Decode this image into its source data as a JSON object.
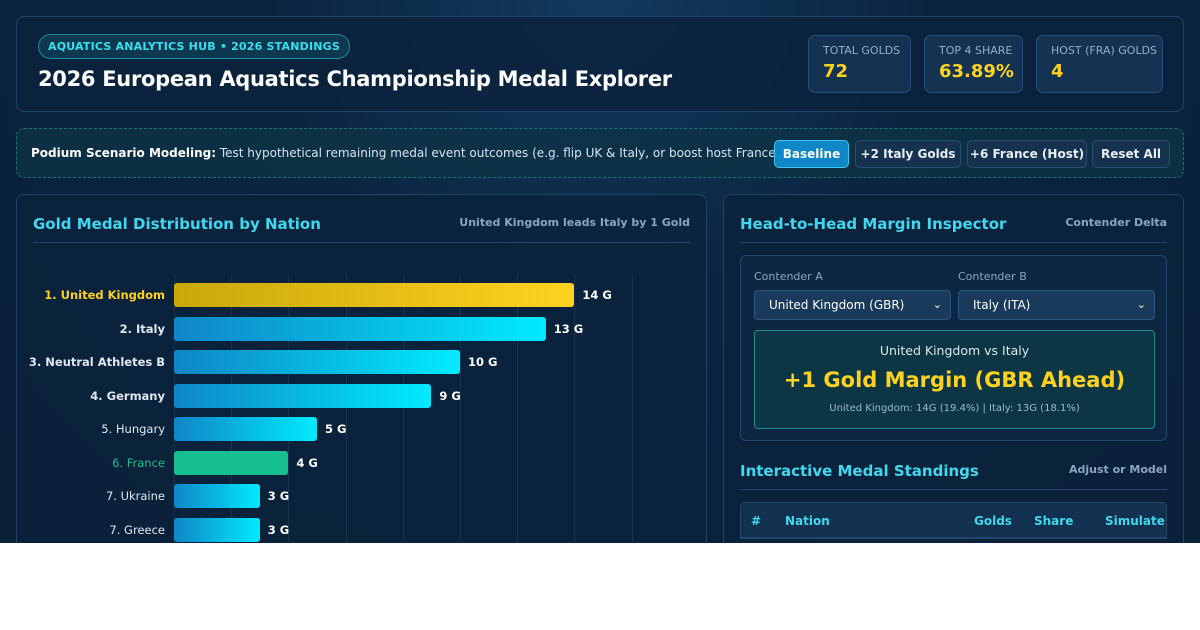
{
  "header": {
    "badge": "AQUATICS ANALYTICS HUB • 2026 STANDINGS",
    "title": "2026 European Aquatics Championship Medal Explorer",
    "stats": [
      {
        "label": "TOTAL GOLDS",
        "value": "72"
      },
      {
        "label": "TOP 4 SHARE",
        "value": "63.89%"
      },
      {
        "label": "HOST (FRA) GOLDS",
        "value": "4"
      }
    ]
  },
  "scenario": {
    "label": "Podium Scenario Modeling:",
    "text": "Test hypothetical remaining medal event outcomes (e.g. flip UK & Italy, or boost host France).",
    "buttons": [
      "Baseline",
      "+2 Italy Golds",
      "+6 France (Host)",
      "Reset All"
    ],
    "active_button": "Baseline"
  },
  "chart_panel": {
    "title": "Gold Medal Distribution by Nation",
    "subtitle": "United Kingdom leads Italy by 1 Gold"
  },
  "chart_data": {
    "type": "bar",
    "orientation": "horizontal",
    "categories": [
      "1. United Kingdom",
      "2. Italy",
      "3. Neutral Athletes B",
      "4. Germany",
      "5. Hungary",
      "6. France",
      "7. Ukraine",
      "7. Greece"
    ],
    "values": [
      14,
      13,
      10,
      9,
      5,
      4,
      3,
      3
    ],
    "value_labels": [
      "14 G",
      "13 G",
      "10 G",
      "9 G",
      "5 G",
      "4 G",
      "3 G",
      "3 G"
    ],
    "xlim": [
      0,
      16
    ],
    "grid": true,
    "colors": {
      "leader": "#ffd21f",
      "host": "#16c08e",
      "default_start": "#0f86c6",
      "default_end": "#00eaff"
    },
    "highlight": {
      "leader": "1. United Kingdom",
      "host": "6. France"
    }
  },
  "inspector": {
    "title": "Head-to-Head Margin Inspector",
    "subtitle": "Contender Delta",
    "contender_a_label": "Contender A",
    "contender_a_value": "United Kingdom (GBR)",
    "contender_b_label": "Contender B",
    "contender_b_value": "Italy (ITA)",
    "matchup": "United Kingdom vs Italy",
    "margin": "+1 Gold Margin (GBR Ahead)",
    "detail": "United Kingdom: 14G (19.4%) | Italy: 13G (18.1%)"
  },
  "standings": {
    "title": "Interactive Medal Standings",
    "subtitle": "Adjust or Model",
    "columns": [
      "#",
      "Nation",
      "Golds",
      "Share",
      "Simulate"
    ]
  },
  "colors": {
    "accent": "#3fd8ee",
    "gold": "#ffd21f",
    "background": "#0a1f38"
  }
}
